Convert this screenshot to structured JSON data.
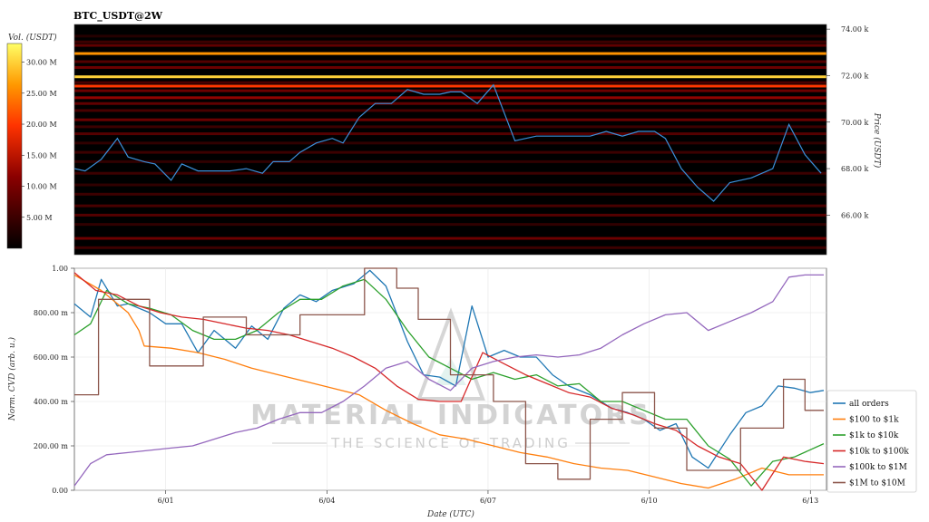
{
  "title": "BTC_USDT@2W",
  "colors": {
    "price_line": "#3b8fd9",
    "heat_low": "#000000",
    "heat_mid": "#8b0000",
    "heat_high": "#ffff00",
    "watermark": "#9e9e9e"
  },
  "watermark": {
    "main": "MATERIAL INDICATORS",
    "sub": "THE SCIENCE OF TRADING"
  },
  "chart_data": [
    {
      "type": "heatmap",
      "description": "Order book liquidity heatmap with BTC price line overlay",
      "colorbar_label": "Vol. (USDT)",
      "colorbar_ticks": [
        "5.00 M",
        "10.00 M",
        "15.00 M",
        "20.00 M",
        "25.00 M",
        "30.00 M"
      ],
      "colorbar_tick_values": [
        5,
        10,
        15,
        20,
        25,
        30
      ],
      "colorbar_range": [
        0,
        33
      ],
      "ylabel": "Price (USDT)",
      "y_ticks": [
        "66.00 k",
        "68.00 k",
        "70.00 k",
        "72.00 k",
        "74.00 k"
      ],
      "y_tick_values": [
        66000,
        68000,
        70000,
        72000,
        74000
      ],
      "ylim": [
        64300,
        74200
      ],
      "xlim": [
        0,
        14
      ],
      "levels": [
        {
          "price": 73700,
          "vol": 3
        },
        {
          "price": 73450,
          "vol": 5
        },
        {
          "price": 73300,
          "vol": 8
        },
        {
          "price": 72950,
          "vol": 26
        },
        {
          "price": 72600,
          "vol": 7
        },
        {
          "price": 72350,
          "vol": 9
        },
        {
          "price": 71950,
          "vol": 30
        },
        {
          "price": 71700,
          "vol": 6
        },
        {
          "price": 71550,
          "vol": 20
        },
        {
          "price": 71350,
          "vol": 9
        },
        {
          "price": 71050,
          "vol": 12
        },
        {
          "price": 70800,
          "vol": 8
        },
        {
          "price": 70500,
          "vol": 6
        },
        {
          "price": 70100,
          "vol": 9
        },
        {
          "price": 69800,
          "vol": 5
        },
        {
          "price": 69500,
          "vol": 7
        },
        {
          "price": 69100,
          "vol": 4
        },
        {
          "price": 68700,
          "vol": 5
        },
        {
          "price": 68300,
          "vol": 4
        },
        {
          "price": 67800,
          "vol": 5
        },
        {
          "price": 67300,
          "vol": 4
        },
        {
          "price": 66900,
          "vol": 5
        },
        {
          "price": 66400,
          "vol": 6
        },
        {
          "price": 66000,
          "vol": 7
        },
        {
          "price": 65600,
          "vol": 4
        },
        {
          "price": 65000,
          "vol": 9
        },
        {
          "price": 64600,
          "vol": 5
        }
      ],
      "price": {
        "name": "price",
        "x": [
          0,
          0.2,
          0.5,
          0.8,
          1.0,
          1.3,
          1.5,
          1.8,
          2.0,
          2.3,
          2.6,
          2.9,
          3.2,
          3.5,
          3.7,
          4.0,
          4.2,
          4.5,
          4.8,
          5.0,
          5.3,
          5.6,
          5.9,
          6.2,
          6.5,
          6.8,
          7.0,
          7.2,
          7.5,
          7.8,
          8.2,
          8.6,
          9.0,
          9.3,
          9.6,
          9.9,
          10.2,
          10.5,
          10.8,
          11.0,
          11.3,
          11.6,
          11.9,
          12.2,
          12.6,
          13.0,
          13.3,
          13.6,
          13.9
        ],
        "y": [
          68000,
          67900,
          68400,
          69300,
          68500,
          68300,
          68200,
          67500,
          68200,
          67900,
          67900,
          67900,
          68000,
          67800,
          68300,
          68300,
          68700,
          69100,
          69300,
          69100,
          70200,
          70800,
          70800,
          71400,
          71200,
          71200,
          71300,
          71300,
          70800,
          71600,
          69200,
          69400,
          69400,
          69400,
          69400,
          69600,
          69400,
          69600,
          69600,
          69300,
          68000,
          67200,
          66600,
          67400,
          67600,
          68000,
          69900,
          68600,
          67800
        ]
      }
    },
    {
      "type": "line",
      "xlabel": "Date (UTC)",
      "ylabel": "Norm. CVD (arb. u.)",
      "x_ticks": [
        "6/01",
        "6/04",
        "6/07",
        "6/10",
        "6/13"
      ],
      "x_tick_values": [
        1.7,
        4.7,
        7.7,
        10.7,
        13.7
      ],
      "xlim": [
        0,
        14
      ],
      "y_ticks": [
        "0.00",
        "200.00 m",
        "400.00 m",
        "600.00 m",
        "800.00 m",
        "1.00"
      ],
      "y_tick_values": [
        0,
        0.2,
        0.4,
        0.6,
        0.8,
        1.0
      ],
      "ylim": [
        0,
        1.0
      ],
      "legend_position": "lower-right",
      "series": [
        {
          "name": "all orders",
          "color": "#1f77b4",
          "x": [
            0,
            0.3,
            0.5,
            0.8,
            1.0,
            1.4,
            1.7,
            2.0,
            2.3,
            2.6,
            3.0,
            3.3,
            3.6,
            3.9,
            4.2,
            4.5,
            4.8,
            5.2,
            5.5,
            5.8,
            6.2,
            6.5,
            6.8,
            7.1,
            7.4,
            7.7,
            8.0,
            8.3,
            8.6,
            8.9,
            9.2,
            9.6,
            10.0,
            10.3,
            10.6,
            10.9,
            11.2,
            11.5,
            11.8,
            12.2,
            12.5,
            12.8,
            13.1,
            13.4,
            13.7,
            13.95
          ],
          "y": [
            0.84,
            0.78,
            0.95,
            0.83,
            0.84,
            0.8,
            0.75,
            0.75,
            0.62,
            0.72,
            0.64,
            0.74,
            0.68,
            0.82,
            0.88,
            0.85,
            0.9,
            0.93,
            0.99,
            0.92,
            0.67,
            0.52,
            0.51,
            0.47,
            0.83,
            0.6,
            0.63,
            0.6,
            0.6,
            0.52,
            0.47,
            0.43,
            0.37,
            0.35,
            0.32,
            0.27,
            0.3,
            0.15,
            0.1,
            0.25,
            0.35,
            0.38,
            0.47,
            0.46,
            0.44,
            0.45
          ]
        },
        {
          "name": "$100 to $1k",
          "color": "#ff7f0e",
          "x": [
            0,
            0.5,
            1.0,
            1.2,
            1.3,
            1.8,
            2.3,
            2.8,
            3.3,
            3.8,
            4.3,
            4.8,
            5.3,
            5.8,
            6.3,
            6.8,
            7.3,
            7.8,
            8.3,
            8.8,
            9.3,
            9.8,
            10.3,
            10.8,
            11.3,
            11.8,
            12.3,
            12.8,
            13.3,
            13.95
          ],
          "y": [
            0.97,
            0.9,
            0.8,
            0.72,
            0.65,
            0.64,
            0.62,
            0.59,
            0.55,
            0.52,
            0.49,
            0.46,
            0.43,
            0.36,
            0.3,
            0.25,
            0.23,
            0.2,
            0.17,
            0.15,
            0.12,
            0.1,
            0.09,
            0.06,
            0.03,
            0.01,
            0.05,
            0.1,
            0.07,
            0.07
          ]
        },
        {
          "name": "$1k to $10k",
          "color": "#2ca02c",
          "x": [
            0,
            0.3,
            0.6,
            1.0,
            1.4,
            1.8,
            2.2,
            2.6,
            3.0,
            3.4,
            3.8,
            4.2,
            4.6,
            5.0,
            5.4,
            5.8,
            6.2,
            6.6,
            7.0,
            7.4,
            7.8,
            8.2,
            8.6,
            9.0,
            9.4,
            9.8,
            10.2,
            10.6,
            11.0,
            11.4,
            11.8,
            12.2,
            12.6,
            13.0,
            13.4,
            13.95
          ],
          "y": [
            0.7,
            0.75,
            0.9,
            0.84,
            0.82,
            0.79,
            0.72,
            0.68,
            0.68,
            0.72,
            0.8,
            0.86,
            0.86,
            0.92,
            0.95,
            0.86,
            0.72,
            0.6,
            0.55,
            0.5,
            0.53,
            0.5,
            0.52,
            0.47,
            0.48,
            0.4,
            0.4,
            0.36,
            0.32,
            0.32,
            0.2,
            0.14,
            0.02,
            0.13,
            0.15,
            0.21
          ]
        },
        {
          "name": "$10k to $100k",
          "color": "#d62728",
          "x": [
            0,
            0.4,
            0.8,
            1.2,
            1.6,
            2.0,
            2.4,
            2.8,
            3.2,
            3.6,
            4.0,
            4.4,
            4.8,
            5.2,
            5.6,
            6.0,
            6.4,
            6.8,
            7.2,
            7.6,
            8.0,
            8.4,
            8.8,
            9.2,
            9.6,
            10.0,
            10.4,
            10.8,
            11.2,
            11.6,
            12.0,
            12.4,
            12.8,
            13.2,
            13.6,
            13.95
          ],
          "y": [
            0.98,
            0.9,
            0.88,
            0.83,
            0.8,
            0.78,
            0.77,
            0.75,
            0.73,
            0.72,
            0.7,
            0.67,
            0.64,
            0.6,
            0.55,
            0.47,
            0.41,
            0.4,
            0.4,
            0.62,
            0.57,
            0.52,
            0.48,
            0.44,
            0.42,
            0.37,
            0.34,
            0.3,
            0.27,
            0.2,
            0.15,
            0.12,
            0.0,
            0.15,
            0.13,
            0.12
          ]
        },
        {
          "name": "$100k to $1M",
          "color": "#9467bd",
          "x": [
            0,
            0.3,
            0.6,
            1.0,
            1.4,
            1.8,
            2.2,
            2.6,
            3.0,
            3.4,
            3.8,
            4.2,
            4.6,
            5.0,
            5.4,
            5.8,
            6.2,
            6.6,
            7.0,
            7.4,
            7.8,
            8.2,
            8.6,
            9.0,
            9.4,
            9.8,
            10.2,
            10.6,
            11.0,
            11.4,
            11.8,
            12.2,
            12.6,
            13.0,
            13.3,
            13.6,
            13.95
          ],
          "y": [
            0.02,
            0.12,
            0.16,
            0.17,
            0.18,
            0.19,
            0.2,
            0.23,
            0.26,
            0.28,
            0.32,
            0.35,
            0.35,
            0.4,
            0.47,
            0.55,
            0.58,
            0.5,
            0.45,
            0.55,
            0.58,
            0.6,
            0.61,
            0.6,
            0.61,
            0.64,
            0.7,
            0.75,
            0.79,
            0.8,
            0.72,
            0.76,
            0.8,
            0.85,
            0.96,
            0.97,
            0.97
          ]
        },
        {
          "name": "$1M to $10M",
          "color": "#8c564b",
          "step": true,
          "x": [
            0,
            0.45,
            0.45,
            1.4,
            1.4,
            2.4,
            2.4,
            3.2,
            3.2,
            4.2,
            4.2,
            5.4,
            5.4,
            6.0,
            6.0,
            6.4,
            6.4,
            7.0,
            7.0,
            7.8,
            7.8,
            8.4,
            8.4,
            9.0,
            9.0,
            9.6,
            9.6,
            10.2,
            10.2,
            10.8,
            10.8,
            11.4,
            11.4,
            12.4,
            12.4,
            13.2,
            13.2,
            13.6,
            13.6,
            13.95
          ],
          "y": [
            0.43,
            0.43,
            0.86,
            0.86,
            0.56,
            0.56,
            0.78,
            0.78,
            0.7,
            0.7,
            0.79,
            0.79,
            1.0,
            1.0,
            0.91,
            0.91,
            0.77,
            0.77,
            0.52,
            0.52,
            0.4,
            0.4,
            0.12,
            0.12,
            0.05,
            0.05,
            0.32,
            0.32,
            0.44,
            0.44,
            0.28,
            0.28,
            0.09,
            0.09,
            0.28,
            0.28,
            0.5,
            0.5,
            0.36,
            0.36
          ]
        }
      ]
    }
  ]
}
